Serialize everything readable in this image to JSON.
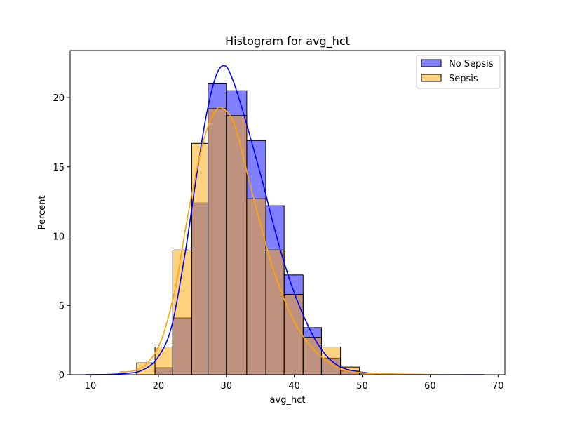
{
  "chart_data": {
    "type": "bar",
    "title": "Histogram for avg_hct",
    "xlabel": "avg_hct",
    "ylabel": "Percent",
    "xlim": [
      7,
      71
    ],
    "ylim": [
      0,
      23.4
    ],
    "xticks": [
      10,
      20,
      30,
      40,
      50,
      60,
      70
    ],
    "yticks": [
      0,
      5,
      10,
      15,
      20
    ],
    "grid": false,
    "legend_position": "top-right",
    "series": [
      {
        "name": "No Sepsis",
        "color": "#0000ff",
        "fill_color": "#7f7fff",
        "bins": [
          {
            "x0": 19.5,
            "x1": 22.1,
            "percent": 0.5
          },
          {
            "x0": 22.1,
            "x1": 24.9,
            "percent": 4.1
          },
          {
            "x0": 24.9,
            "x1": 27.3,
            "percent": 12.4
          },
          {
            "x0": 27.3,
            "x1": 30.0,
            "percent": 21.0
          },
          {
            "x0": 30.0,
            "x1": 33.0,
            "percent": 20.5
          },
          {
            "x0": 33.0,
            "x1": 35.8,
            "percent": 16.9
          },
          {
            "x0": 35.8,
            "x1": 38.5,
            "percent": 12.2
          },
          {
            "x0": 38.5,
            "x1": 41.3,
            "percent": 7.2
          },
          {
            "x0": 41.3,
            "x1": 44.0,
            "percent": 3.4
          },
          {
            "x0": 44.0,
            "x1": 46.8,
            "percent": 1.2
          },
          {
            "x0": 46.8,
            "x1": 49.6,
            "percent": 0.3
          }
        ],
        "kde": [
          [
            9.2,
            0.0
          ],
          [
            14.0,
            0.05
          ],
          [
            17.5,
            0.3
          ],
          [
            20.0,
            1.3
          ],
          [
            22.0,
            3.6
          ],
          [
            24.0,
            9.0
          ],
          [
            25.5,
            14.0
          ],
          [
            27.0,
            18.6
          ],
          [
            28.5,
            21.6
          ],
          [
            29.8,
            22.3
          ],
          [
            31.0,
            21.2
          ],
          [
            32.5,
            18.9
          ],
          [
            34.0,
            16.3
          ],
          [
            35.5,
            13.6
          ],
          [
            37.0,
            10.7
          ],
          [
            38.5,
            8.1
          ],
          [
            40.0,
            5.9
          ],
          [
            41.5,
            4.1
          ],
          [
            43.0,
            2.6
          ],
          [
            44.5,
            1.5
          ],
          [
            46.0,
            0.8
          ],
          [
            48.0,
            0.35
          ],
          [
            52.0,
            0.08
          ],
          [
            60.0,
            0.01
          ],
          [
            68.0,
            0.0
          ]
        ]
      },
      {
        "name": "Sepsis",
        "color": "#ffa500",
        "fill_color": "#ffd27f",
        "bins": [
          {
            "x0": 16.8,
            "x1": 19.5,
            "percent": 0.85
          },
          {
            "x0": 19.5,
            "x1": 22.1,
            "percent": 2.0
          },
          {
            "x0": 22.1,
            "x1": 24.9,
            "percent": 9.0
          },
          {
            "x0": 24.9,
            "x1": 27.3,
            "percent": 16.7
          },
          {
            "x0": 27.3,
            "x1": 30.0,
            "percent": 19.2
          },
          {
            "x0": 30.0,
            "x1": 33.0,
            "percent": 18.7
          },
          {
            "x0": 33.0,
            "x1": 35.8,
            "percent": 12.7
          },
          {
            "x0": 35.8,
            "x1": 38.5,
            "percent": 9.0
          },
          {
            "x0": 38.5,
            "x1": 41.3,
            "percent": 5.8
          },
          {
            "x0": 41.3,
            "x1": 44.0,
            "percent": 2.7
          },
          {
            "x0": 44.0,
            "x1": 46.8,
            "percent": 2.0
          },
          {
            "x0": 46.8,
            "x1": 49.6,
            "percent": 0.55
          },
          {
            "x0": 49.6,
            "x1": 52.3,
            "percent": 0.1
          }
        ],
        "kde": [
          [
            14.3,
            0.2
          ],
          [
            16.5,
            0.3
          ],
          [
            18.5,
            0.9
          ],
          [
            20.5,
            2.6
          ],
          [
            22.5,
            6.3
          ],
          [
            24.0,
            10.6
          ],
          [
            25.5,
            14.5
          ],
          [
            27.0,
            17.5
          ],
          [
            28.5,
            19.1
          ],
          [
            29.5,
            19.2
          ],
          [
            30.8,
            18.5
          ],
          [
            32.0,
            16.7
          ],
          [
            33.5,
            13.7
          ],
          [
            35.0,
            10.9
          ],
          [
            36.5,
            8.2
          ],
          [
            38.0,
            6.1
          ],
          [
            39.5,
            4.3
          ],
          [
            41.0,
            3.0
          ],
          [
            42.5,
            2.0
          ],
          [
            44.0,
            1.3
          ],
          [
            46.0,
            0.6
          ],
          [
            48.0,
            0.25
          ],
          [
            52.0,
            0.08
          ],
          [
            58.0,
            0.03
          ],
          [
            65.0,
            0.0
          ]
        ]
      }
    ]
  }
}
